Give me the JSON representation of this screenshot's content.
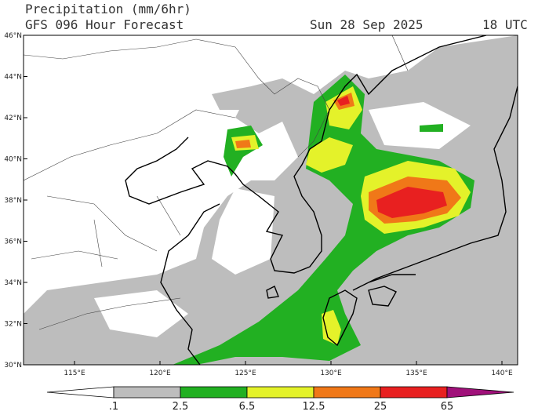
{
  "header": {
    "title": "Precipitation (mm/6hr)",
    "subtitle": "GFS 096 Hour Forecast",
    "date": "Sun 28 Sep 2025",
    "time": "18 UTC"
  },
  "map": {
    "lat_labels": [
      "46°N",
      "44°N",
      "42°N",
      "40°N",
      "38°N",
      "36°N",
      "34°N",
      "32°N",
      "30°N"
    ],
    "lon_labels": [
      "115°E",
      "120°E",
      "125°E",
      "130°E",
      "135°E",
      "140°E"
    ]
  },
  "colorbar": {
    "labels": [
      ".1",
      "2.5",
      "6.5",
      "12.5",
      "25",
      "65"
    ]
  }
}
